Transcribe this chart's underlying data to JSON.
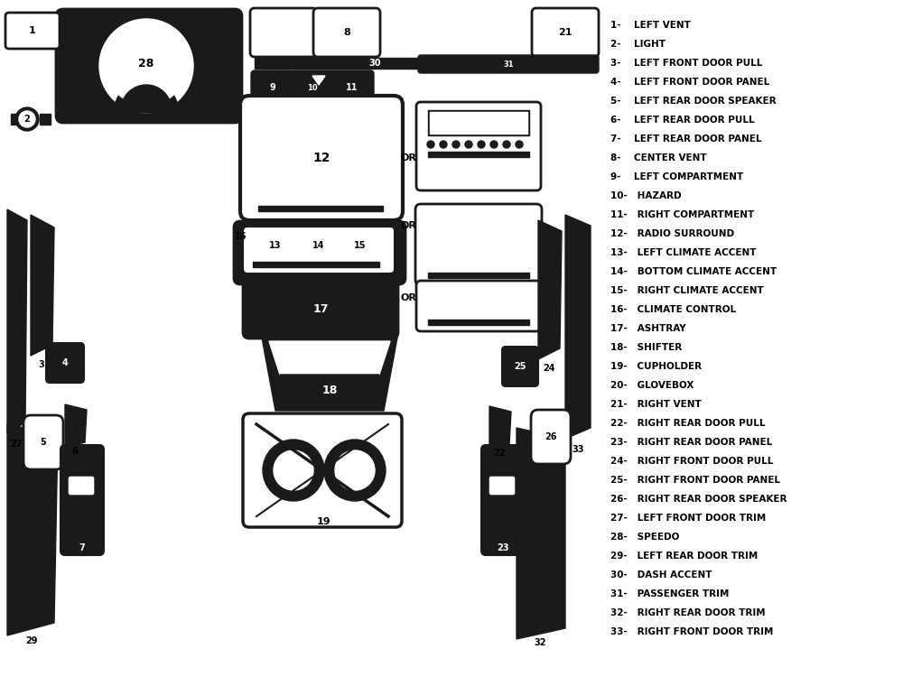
{
  "bg_color": "#ffffff",
  "part_color": "#1a1a1a",
  "legend": [
    "1-    LEFT VENT",
    "2-    LIGHT",
    "3-    LEFT FRONT DOOR PULL",
    "4-    LEFT FRONT DOOR PANEL",
    "5-    LEFT REAR DOOR SPEAKER",
    "6-    LEFT REAR DOOR PULL",
    "7-    LEFT REAR DOOR PANEL",
    "8-    CENTER VENT",
    "9-    LEFT COMPARTMENT",
    "10-   HAZARD",
    "11-   RIGHT COMPARTMENT",
    "12-   RADIO SURROUND",
    "13-   LEFT CLIMATE ACCENT",
    "14-   BOTTOM CLIMATE ACCENT",
    "15-   RIGHT CLIMATE ACCENT",
    "16-   CLIMATE CONTROL",
    "17-   ASHTRAY",
    "18-   SHIFTER",
    "19-   CUPHOLDER",
    "20-   GLOVEBOX",
    "21-   RIGHT VENT",
    "22-   RIGHT REAR DOOR PULL",
    "23-   RIGHT REAR DOOR PANEL",
    "24-   RIGHT FRONT DOOR PULL",
    "25-   RIGHT FRONT DOOR PANEL",
    "26-   RIGHT REAR DOOR SPEAKER",
    "27-   LEFT FRONT DOOR TRIM",
    "28-   SPEEDO",
    "29-   LEFT REAR DOOR TRIM",
    "30-   DASH ACCENT",
    "31-   PASSENGER TRIM",
    "32-   RIGHT REAR DOOR TRIM",
    "33-   RIGHT FRONT DOOR TRIM"
  ]
}
